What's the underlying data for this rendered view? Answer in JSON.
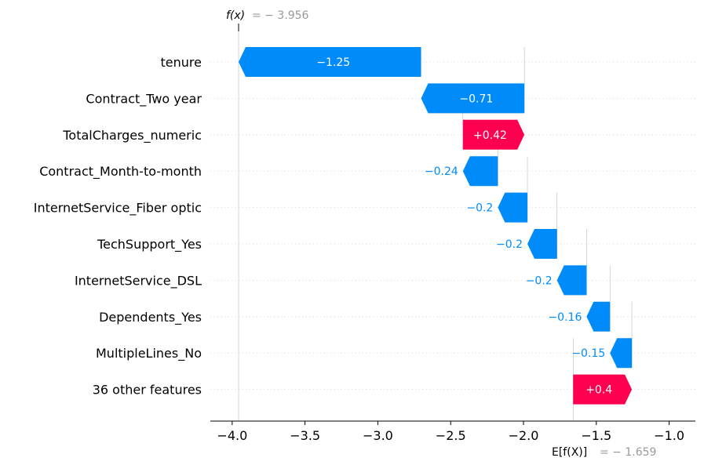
{
  "chart_data": {
    "type": "waterfall",
    "fx_label": "f(x)",
    "fx_value_text": "= − 3.956",
    "fx_value": -3.956,
    "ex_label": "E[f(X)]",
    "ex_value_text": "= − 1.659",
    "ex_value": -1.659,
    "xlim": [
      -4.15,
      -0.82
    ],
    "xticks": [
      -4.0,
      -3.5,
      -3.0,
      -2.5,
      -2.0,
      -1.5,
      -1.0
    ],
    "xtick_labels": [
      "−4.0",
      "−3.5",
      "−3.0",
      "−2.5",
      "−2.0",
      "−1.5",
      "−1.0"
    ],
    "positive_color": "#ff0051",
    "negative_color": "#008bfb",
    "features": [
      {
        "name": "tenure",
        "value": -1.25,
        "label": "−1.25",
        "start": -2.703,
        "end": -3.956
      },
      {
        "name": "Contract_Two year",
        "value": -0.71,
        "label": "−0.71",
        "start": -1.994,
        "end": -2.703
      },
      {
        "name": "TotalCharges_numeric",
        "value": 0.42,
        "label": "+0.42",
        "start": -2.416,
        "end": -1.994
      },
      {
        "name": "Contract_Month-to-month",
        "value": -0.24,
        "label": "−0.24",
        "start": -2.176,
        "end": -2.416
      },
      {
        "name": "InternetService_Fiber optic",
        "value": -0.2,
        "label": "−0.2",
        "start": -1.973,
        "end": -2.176
      },
      {
        "name": "TechSupport_Yes",
        "value": -0.2,
        "label": "−0.2",
        "start": -1.77,
        "end": -1.973
      },
      {
        "name": "InternetService_DSL",
        "value": -0.2,
        "label": "−0.2",
        "start": -1.567,
        "end": -1.77
      },
      {
        "name": "Dependents_Yes",
        "value": -0.16,
        "label": "−0.16",
        "start": -1.406,
        "end": -1.567
      },
      {
        "name": "MultipleLines_No",
        "value": -0.15,
        "label": "−0.15",
        "start": -1.256,
        "end": -1.406
      },
      {
        "name": "36 other features",
        "value": 0.4,
        "label": "+0.4",
        "start": -1.659,
        "end": -1.256
      }
    ]
  }
}
